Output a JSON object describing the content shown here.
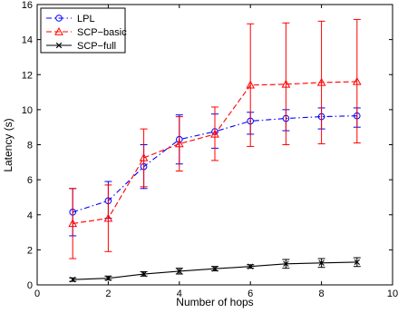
{
  "chart_data": {
    "type": "line",
    "xlabel": "Number of hops",
    "ylabel": "Latency (s)",
    "xlim": [
      0,
      10
    ],
    "ylim": [
      0,
      16
    ],
    "x_ticks": [
      0,
      2,
      4,
      6,
      8,
      10
    ],
    "y_ticks": [
      0,
      2,
      4,
      6,
      8,
      10,
      12,
      14,
      16
    ],
    "grid": false,
    "legend_position": "top-left",
    "series": [
      {
        "name": "LPL",
        "color": "#0000ff",
        "marker": "circle",
        "line_style": "dash-dot",
        "x": [
          1,
          2,
          3,
          4,
          5,
          6,
          7,
          8,
          9
        ],
        "y": [
          4.15,
          4.8,
          6.75,
          8.3,
          8.75,
          9.35,
          9.5,
          9.6,
          9.65
        ],
        "err_low": [
          2.8,
          3.8,
          5.5,
          6.9,
          7.8,
          8.6,
          8.8,
          8.9,
          9.0
        ],
        "err_high": [
          5.5,
          5.9,
          8.0,
          9.7,
          9.75,
          9.85,
          10.0,
          10.1,
          10.1
        ]
      },
      {
        "name": "SCP−basic",
        "color": "#ff0000",
        "marker": "triangle",
        "line_style": "dashed",
        "x": [
          1,
          2,
          3,
          4,
          5,
          6,
          7,
          8,
          9
        ],
        "y": [
          3.5,
          3.8,
          7.25,
          8.05,
          8.6,
          11.4,
          11.45,
          11.55,
          11.6
        ],
        "err_low": [
          1.5,
          1.9,
          5.6,
          6.5,
          7.1,
          7.9,
          8.0,
          8.05,
          8.1
        ],
        "err_high": [
          5.5,
          5.7,
          8.9,
          9.6,
          10.15,
          14.9,
          14.95,
          15.05,
          15.15
        ]
      },
      {
        "name": "SCP−full",
        "color": "#000000",
        "marker": "x",
        "line_style": "solid",
        "x": [
          1,
          2,
          3,
          4,
          5,
          6,
          7,
          8,
          9
        ],
        "y": [
          0.3,
          0.38,
          0.62,
          0.78,
          0.92,
          1.05,
          1.2,
          1.25,
          1.3
        ],
        "err_low": [
          0.2,
          0.28,
          0.5,
          0.62,
          0.8,
          0.95,
          0.95,
          1.0,
          1.05
        ],
        "err_high": [
          0.4,
          0.5,
          0.75,
          0.95,
          1.05,
          1.15,
          1.45,
          1.5,
          1.55
        ]
      }
    ]
  }
}
